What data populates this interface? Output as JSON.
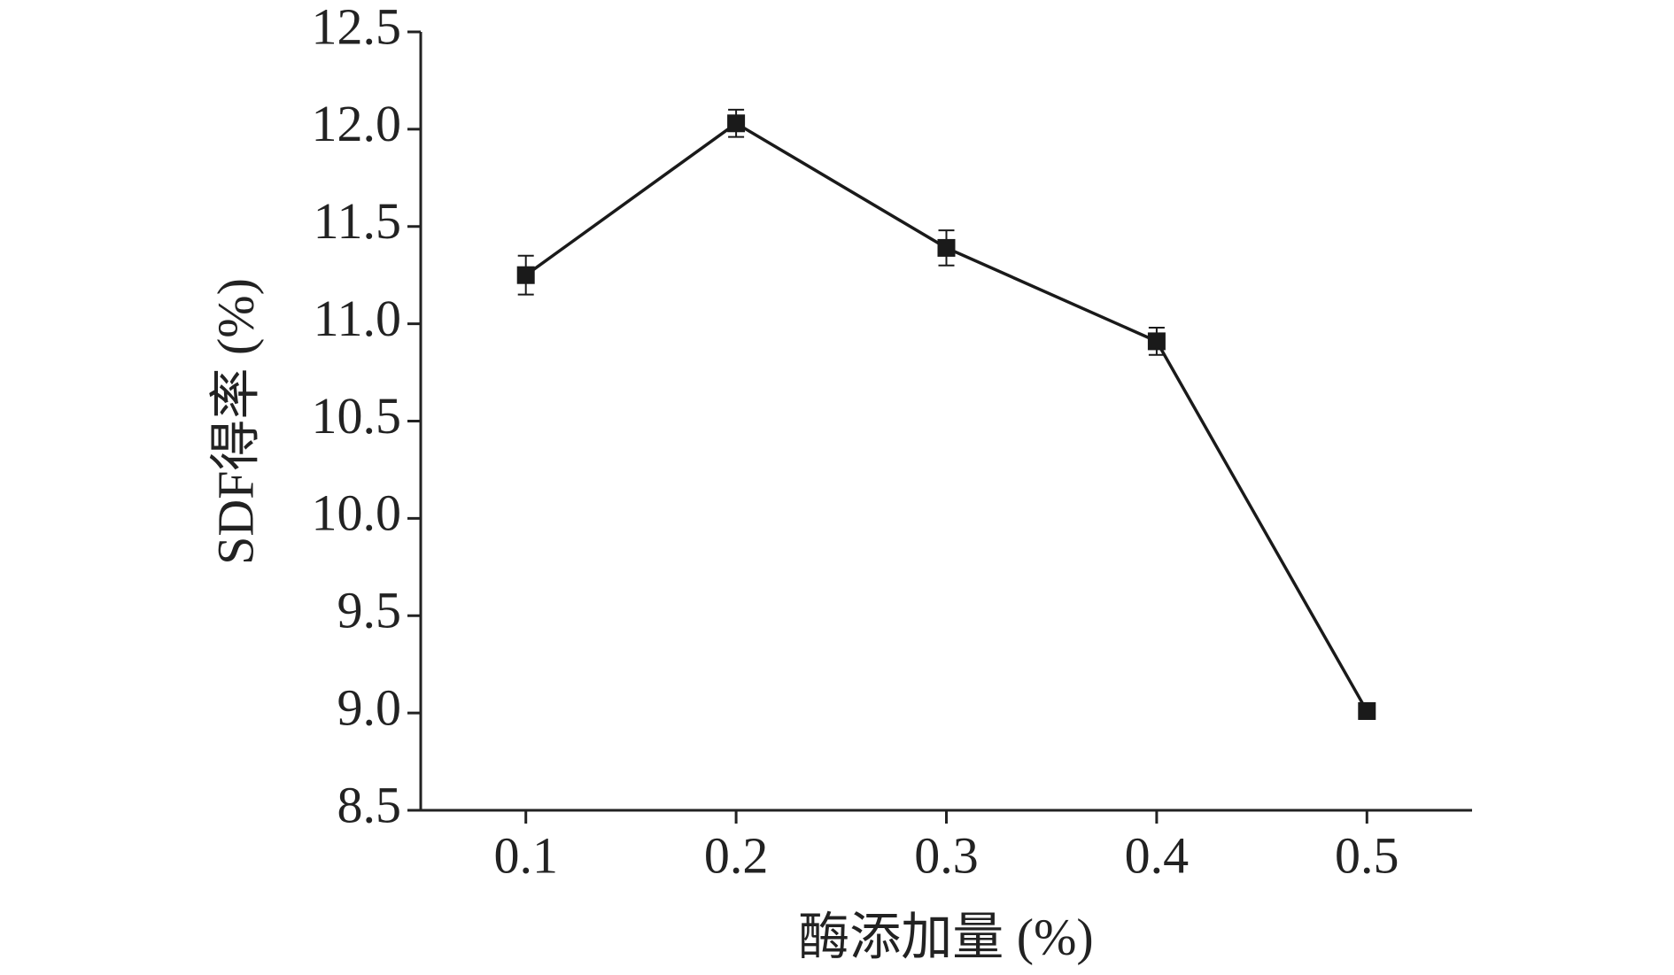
{
  "chart_data": {
    "type": "line",
    "x_label": "酶添加量 (%)",
    "y_label": "SDF得率 (%)",
    "x": [
      0.1,
      0.2,
      0.3,
      0.4,
      0.5
    ],
    "values": [
      11.25,
      12.03,
      11.39,
      10.91,
      9.01
    ],
    "errors": [
      0.1,
      0.07,
      0.09,
      0.07,
      0.04
    ],
    "color": "#1a1a1a",
    "xlim": [
      0.05,
      0.55
    ],
    "xticks": [
      0.1,
      0.2,
      0.3,
      0.4,
      0.5
    ],
    "ylim": [
      8.5,
      12.5
    ],
    "yticks": [
      {
        "value": 8.5,
        "label": "8.5"
      },
      {
        "value": 9,
        "label": "9.0"
      },
      {
        "value": 9.5,
        "label": "9.5"
      },
      {
        "value": 10,
        "label": "10.0"
      },
      {
        "value": 10.5,
        "label": "10.5"
      },
      {
        "value": 11,
        "label": "11.0"
      },
      {
        "value": 11.5,
        "label": "11.5"
      },
      {
        "value": 12,
        "label": "12.0"
      },
      {
        "value": 12.5,
        "label": "12.5"
      }
    ],
    "grid": false
  }
}
